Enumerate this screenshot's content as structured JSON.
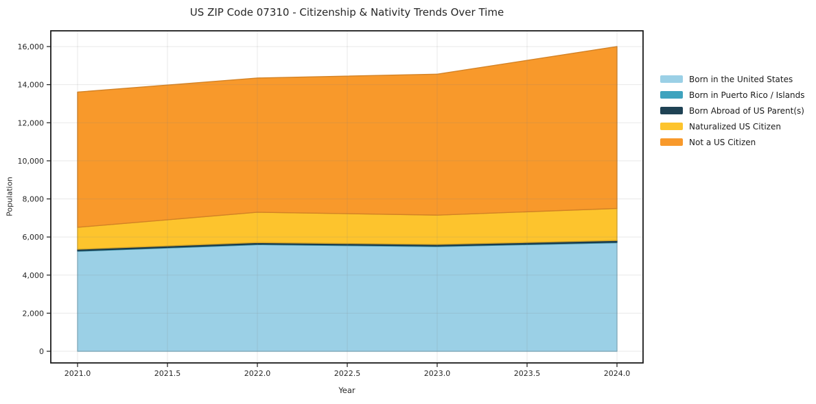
{
  "chart_data": {
    "type": "area",
    "stacked": true,
    "title": "US ZIP Code 07310 - Citizenship & Nativity Trends Over Time",
    "xlabel": "Year",
    "ylabel": "Population",
    "x": [
      2021,
      2022,
      2023,
      2024
    ],
    "series": [
      {
        "name": "Born in the United States",
        "color": "#9BD0E6",
        "values": [
          5250,
          5600,
          5500,
          5700
        ]
      },
      {
        "name": "Born in Puerto Rico / Islands",
        "color": "#3FA3BE",
        "values": [
          30,
          30,
          30,
          30
        ]
      },
      {
        "name": "Born Abroad of US Parent(s)",
        "color": "#1F4254",
        "values": [
          80,
          80,
          80,
          90
        ]
      },
      {
        "name": "Naturalized US Citizen",
        "color": "#FDC42D",
        "values": [
          1150,
          1590,
          1540,
          1680
        ]
      },
      {
        "name": "Not a US Citizen",
        "color": "#F8992B",
        "values": [
          7100,
          7050,
          7400,
          8500
        ]
      }
    ],
    "stack_totals": [
      13610,
      14350,
      14550,
      16000
    ],
    "xticks": [
      2021.0,
      2021.5,
      2022.0,
      2022.5,
      2023.0,
      2023.5,
      2024.0
    ],
    "xtick_labels": [
      "2021.0",
      "2021.5",
      "2022.0",
      "2022.5",
      "2023.0",
      "2023.5",
      "2024.0"
    ],
    "yticks": [
      0,
      2000,
      4000,
      6000,
      8000,
      10000,
      12000,
      14000,
      16000
    ],
    "ytick_labels": [
      "0",
      "2,000",
      "4,000",
      "6,000",
      "8,000",
      "10,000",
      "12,000",
      "14,000",
      "16,000"
    ],
    "ylim": [
      0,
      16000
    ],
    "xlim": [
      2020.85,
      2024.15
    ],
    "grid": true,
    "legend_position": "right"
  }
}
